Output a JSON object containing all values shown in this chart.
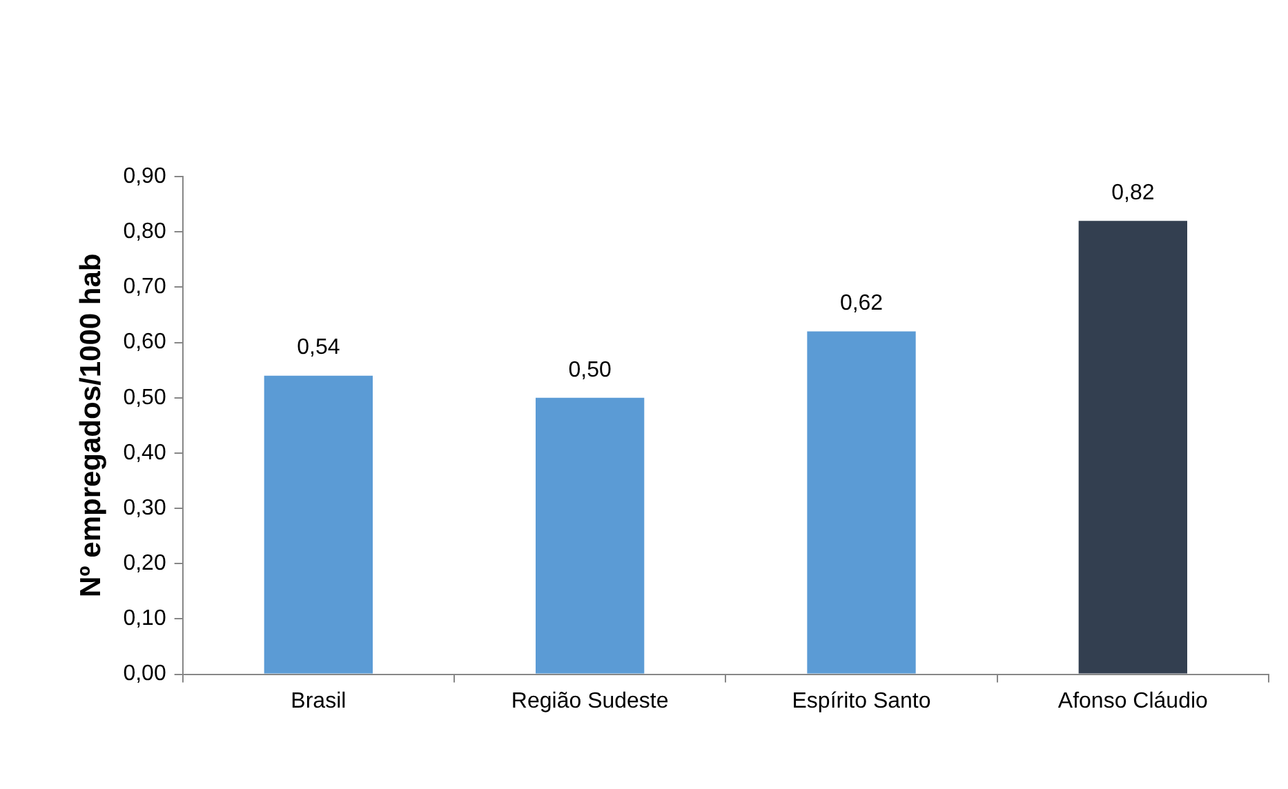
{
  "chart_data": {
    "type": "bar",
    "ylabel": "Nº empregados/1000 hab",
    "categories": [
      "Brasil",
      "Região Sudeste",
      "Espírito Santo",
      "Afonso Cláudio"
    ],
    "values": [
      0.54,
      0.5,
      0.62,
      0.82
    ],
    "colors": [
      "#5b9bd5",
      "#5b9bd5",
      "#5b9bd5",
      "#333f50"
    ],
    "value_labels": [
      "0,54",
      "0,50",
      "0,62",
      "0,82"
    ],
    "ylim": [
      0,
      0.9
    ],
    "yticks": [
      {
        "value": 0,
        "label": "0,00"
      },
      {
        "value": 0.1,
        "label": "0,10"
      },
      {
        "value": 0.2,
        "label": "0,20"
      },
      {
        "value": 0.3,
        "label": "0,30"
      },
      {
        "value": 0.4,
        "label": "0,40"
      },
      {
        "value": 0.5,
        "label": "0,50"
      },
      {
        "value": 0.6,
        "label": "0,60"
      },
      {
        "value": 0.7,
        "label": "0,70"
      },
      {
        "value": 0.8,
        "label": "0,80"
      },
      {
        "value": 0.9,
        "label": "0,90"
      }
    ],
    "grid": false,
    "legend": false
  }
}
